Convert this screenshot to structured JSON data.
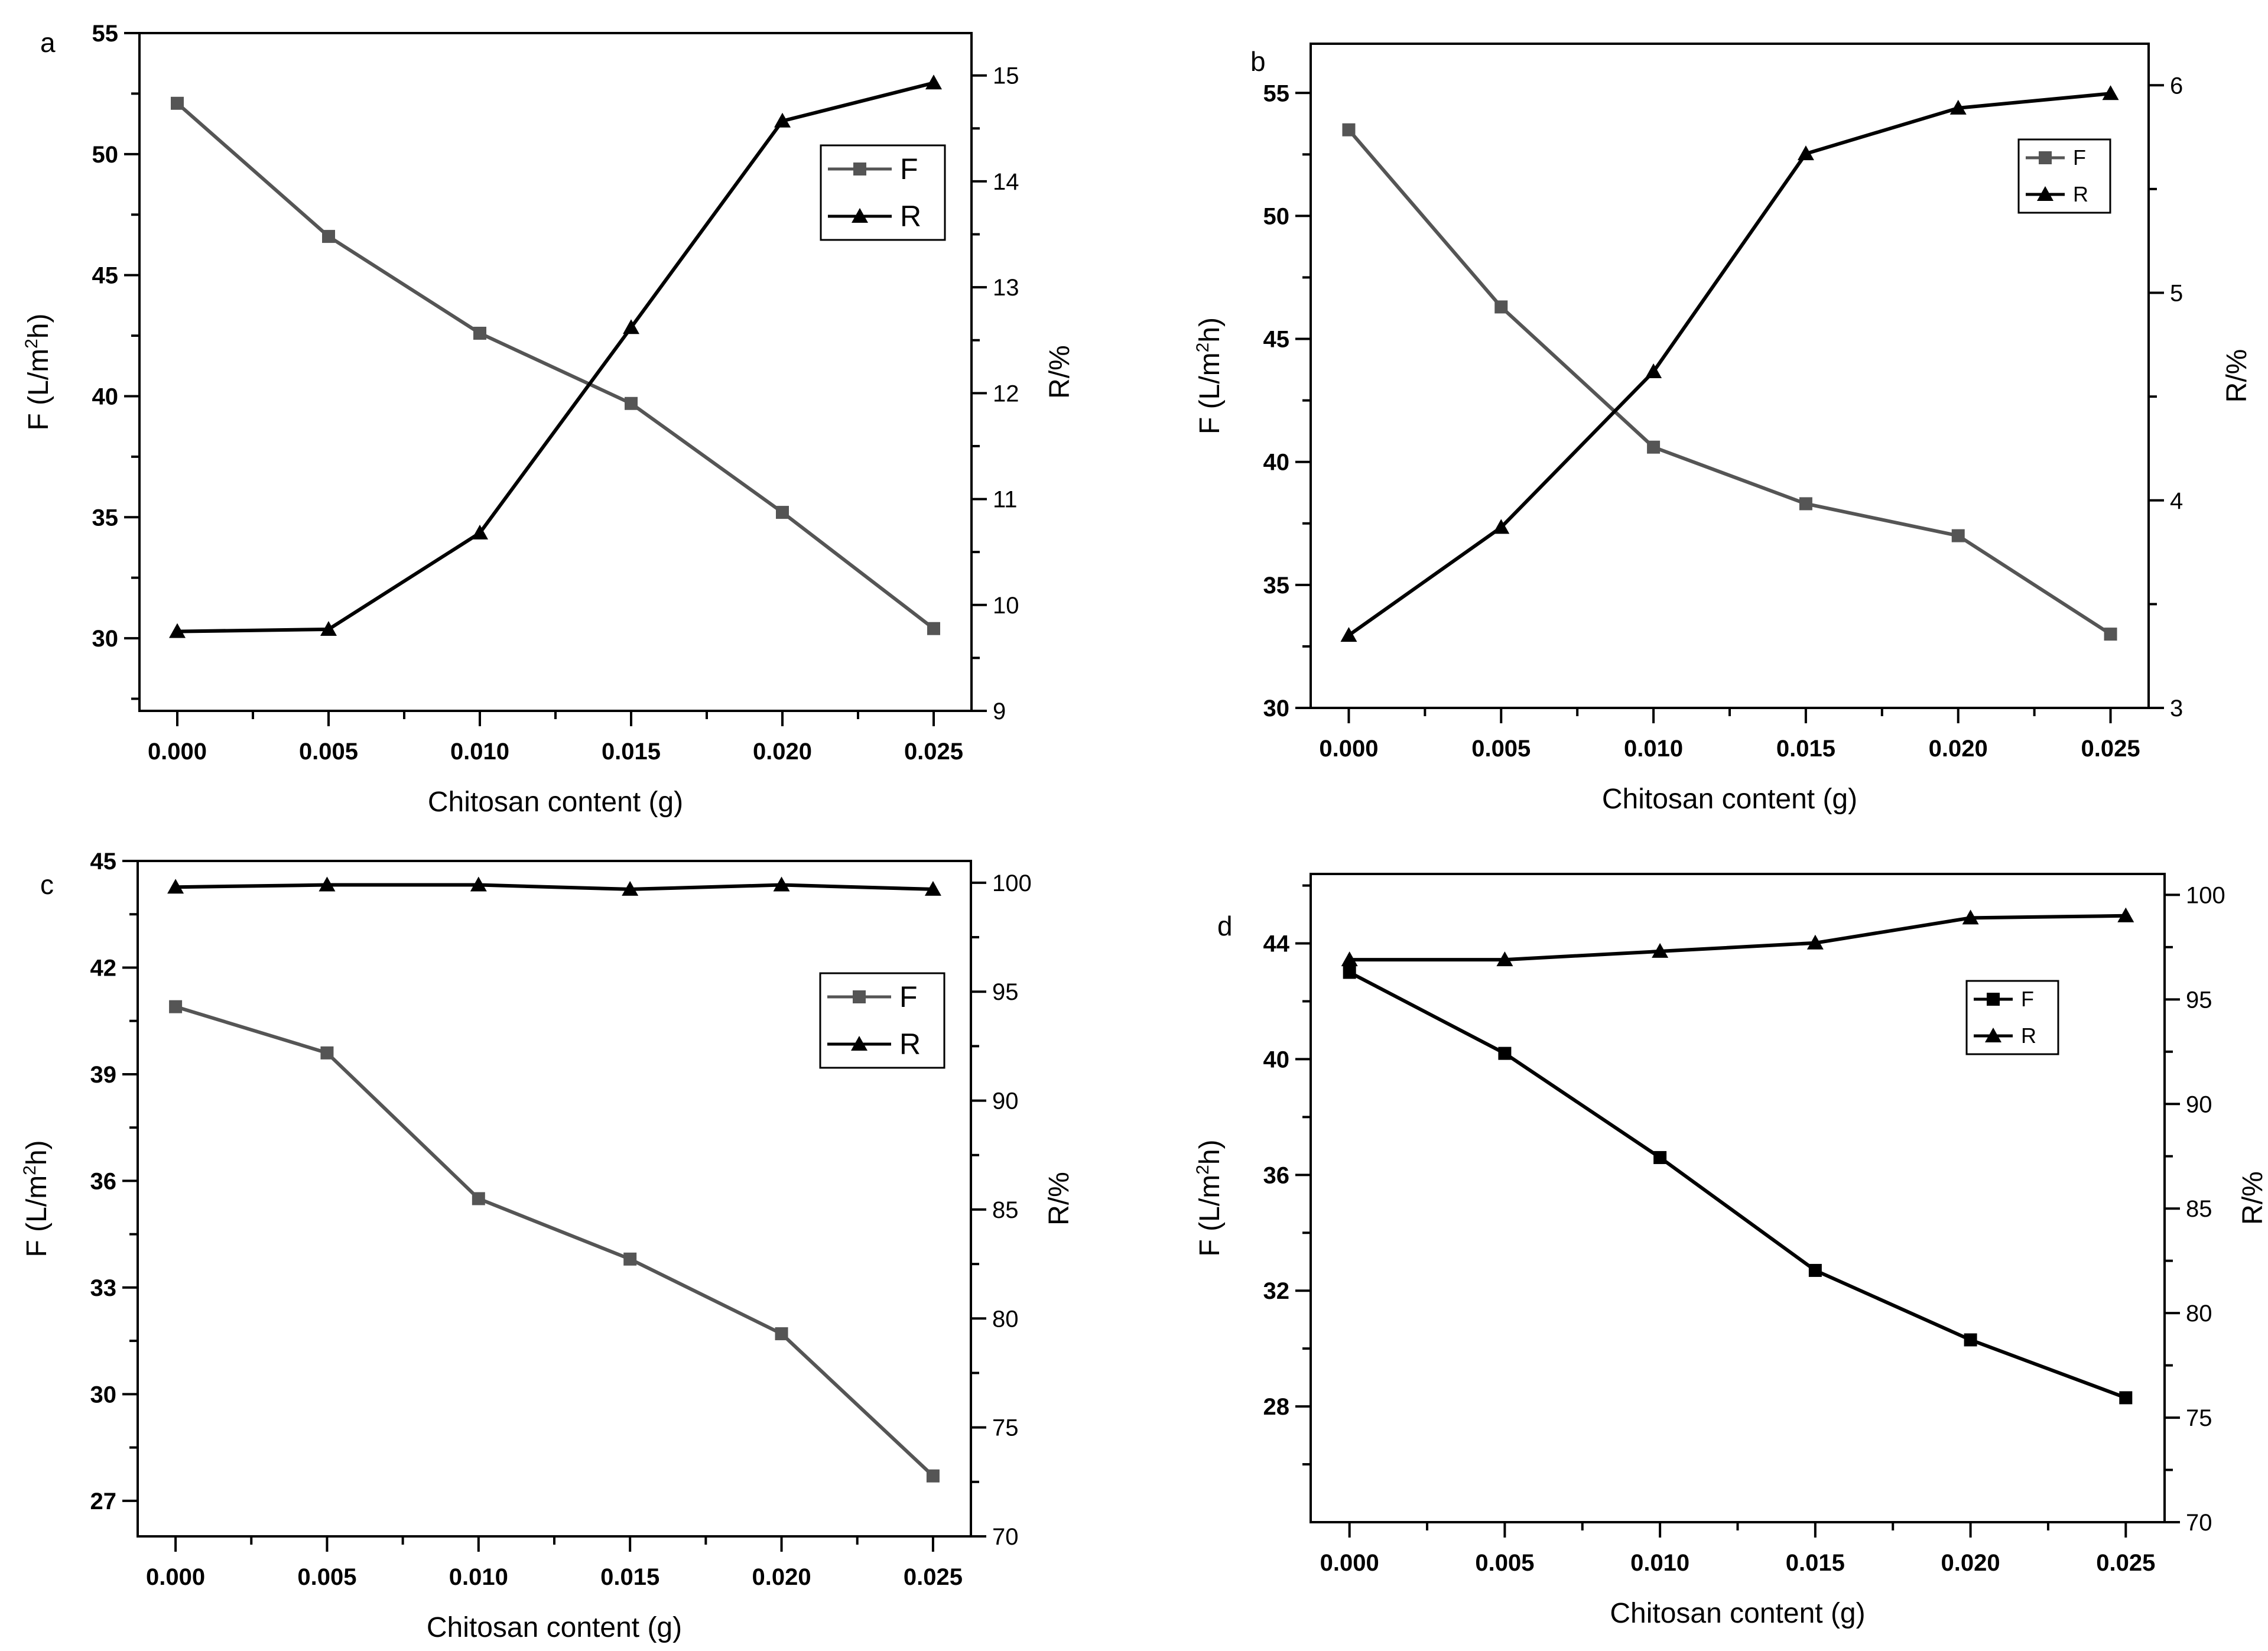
{
  "figure": {
    "panels_order": [
      "a",
      "b",
      "c",
      "d"
    ]
  },
  "chart_data": [
    {
      "panel": "a",
      "type": "line",
      "title": "",
      "xlabel": "Chitosan content (g)",
      "ylabel_parts": [
        "F (L/m",
        "2",
        "h)"
      ],
      "y2label": "R/%",
      "x": [
        0.0,
        0.005,
        0.01,
        0.015,
        0.02,
        0.025
      ],
      "xticks": [
        "0.000",
        "0.005",
        "0.010",
        "0.015",
        "0.020",
        "0.025"
      ],
      "xlim": [
        -0.00125,
        0.02625
      ],
      "ylim": [
        27,
        55
      ],
      "yticks": [
        "30",
        "35",
        "40",
        "45",
        "50",
        "55"
      ],
      "yticks_values": [
        30,
        35,
        40,
        45,
        50,
        55
      ],
      "ylim2": [
        9,
        15.4
      ],
      "y2ticks": [
        "9",
        "10",
        "11",
        "12",
        "13",
        "14",
        "15"
      ],
      "y2ticks_values": [
        9,
        10,
        11,
        12,
        13,
        14,
        15
      ],
      "legend": "top-right",
      "series": [
        {
          "name": "F",
          "axis": "left",
          "marker": "square",
          "color": "#555555",
          "values": [
            52.1,
            46.6,
            42.6,
            39.7,
            35.2,
            30.4
          ]
        },
        {
          "name": "R",
          "axis": "right",
          "marker": "triangle",
          "color": "#000000",
          "values": [
            9.75,
            9.77,
            10.68,
            12.62,
            14.57,
            14.93
          ]
        }
      ]
    },
    {
      "panel": "b",
      "type": "line",
      "title": "",
      "xlabel": "Chitosan content (g)",
      "ylabel_parts": [
        "F (L/m",
        "2",
        "h)"
      ],
      "y2label": "R/%",
      "x": [
        0.0,
        0.005,
        0.01,
        0.015,
        0.02,
        0.025
      ],
      "xticks": [
        "0.000",
        "0.005",
        "0.010",
        "0.015",
        "0.020",
        "0.025"
      ],
      "xlim": [
        -0.00125,
        0.02625
      ],
      "ylim": [
        30,
        57
      ],
      "yticks": [
        "30",
        "35",
        "40",
        "45",
        "50",
        "55"
      ],
      "yticks_values": [
        30,
        35,
        40,
        45,
        50,
        55
      ],
      "ylim2": [
        3,
        6.2
      ],
      "y2ticks": [
        "3",
        "4",
        "5",
        "6"
      ],
      "y2ticks_values": [
        3,
        4,
        5,
        6
      ],
      "legend": "top-right",
      "series": [
        {
          "name": "F",
          "axis": "left",
          "marker": "square",
          "color": "#555555",
          "values": [
            53.5,
            46.3,
            40.6,
            38.3,
            37.0,
            33.0
          ]
        },
        {
          "name": "R",
          "axis": "right",
          "marker": "triangle",
          "color": "#000000",
          "values": [
            3.35,
            3.87,
            4.62,
            5.67,
            5.89,
            5.96
          ]
        }
      ]
    },
    {
      "panel": "c",
      "type": "line",
      "title": "",
      "xlabel": "Chitosan content (g)",
      "ylabel_parts": [
        "F (L/m",
        "2",
        "h)"
      ],
      "y2label": "R/%",
      "x": [
        0.0,
        0.005,
        0.01,
        0.015,
        0.02,
        0.025
      ],
      "xticks": [
        "0.000",
        "0.005",
        "0.010",
        "0.015",
        "0.020",
        "0.025"
      ],
      "xlim": [
        -0.00125,
        0.02625
      ],
      "ylim": [
        26,
        45
      ],
      "yticks": [
        "27",
        "30",
        "33",
        "36",
        "39",
        "42",
        "45"
      ],
      "yticks_values": [
        27,
        30,
        33,
        36,
        39,
        42,
        45
      ],
      "ylim2": [
        70,
        101
      ],
      "y2ticks": [
        "70",
        "75",
        "80",
        "85",
        "90",
        "95",
        "100"
      ],
      "y2ticks_values": [
        70,
        75,
        80,
        85,
        90,
        95,
        100
      ],
      "legend": "top-right",
      "series": [
        {
          "name": "F",
          "axis": "left",
          "marker": "square",
          "color": "#555555",
          "values": [
            40.9,
            39.6,
            35.5,
            33.8,
            31.7,
            27.7
          ]
        },
        {
          "name": "R",
          "axis": "right",
          "marker": "triangle",
          "color": "#000000",
          "values": [
            99.8,
            99.9,
            99.9,
            99.7,
            99.9,
            99.7
          ]
        }
      ]
    },
    {
      "panel": "d",
      "type": "line",
      "title": "",
      "xlabel": "Chitosan content (g)",
      "ylabel_parts": [
        "F (L/m",
        "2",
        "h)"
      ],
      "y2label": "R/%",
      "x": [
        0.0,
        0.005,
        0.01,
        0.015,
        0.02,
        0.025
      ],
      "xticks": [
        "0.000",
        "0.005",
        "0.010",
        "0.015",
        "0.020",
        "0.025"
      ],
      "xlim": [
        -0.00125,
        0.02625
      ],
      "ylim": [
        24,
        46.4
      ],
      "yticks": [
        "28",
        "32",
        "36",
        "40",
        "44"
      ],
      "yticks_values": [
        28,
        32,
        36,
        40,
        44
      ],
      "ylim2": [
        70,
        101
      ],
      "y2ticks": [
        "70",
        "75",
        "80",
        "85",
        "90",
        "95",
        "100"
      ],
      "y2ticks_values": [
        70,
        75,
        80,
        85,
        90,
        95,
        100
      ],
      "legend": "top-right",
      "series": [
        {
          "name": "F",
          "axis": "left",
          "marker": "square",
          "color": "#000000",
          "values": [
            43.0,
            40.2,
            36.6,
            32.7,
            30.3,
            28.3
          ]
        },
        {
          "name": "R",
          "axis": "right",
          "marker": "triangle",
          "color": "#000000",
          "values": [
            96.9,
            96.9,
            97.3,
            97.7,
            98.9,
            99.0
          ]
        }
      ]
    }
  ]
}
